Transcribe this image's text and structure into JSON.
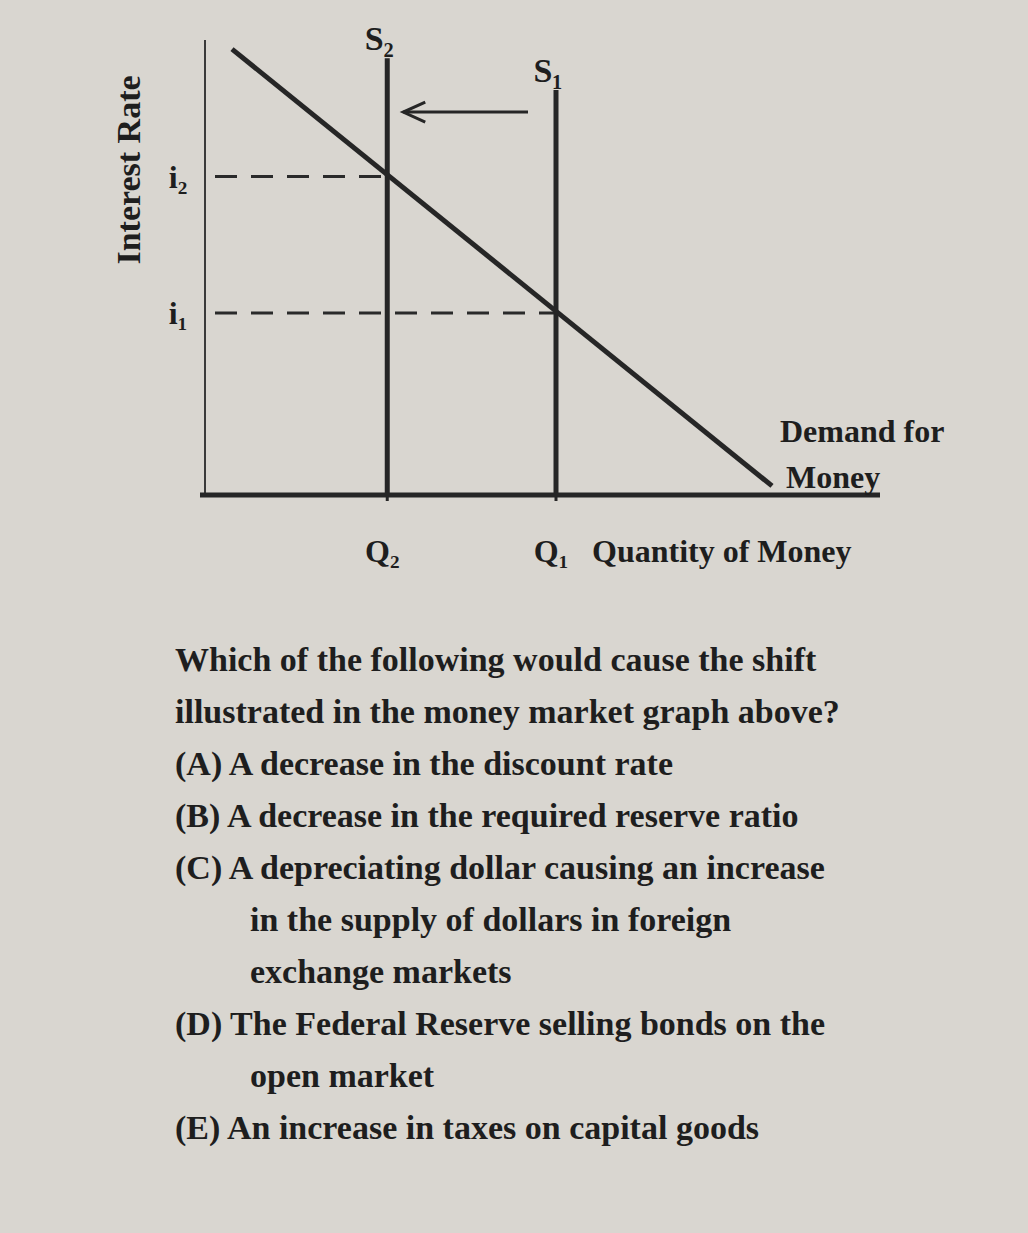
{
  "chart_data": {
    "type": "line",
    "x_label": "Quantity of Money",
    "y_label": "Interest Rate",
    "xlim": [
      0,
      100
    ],
    "ylim": [
      0,
      100
    ],
    "xticks": [
      {
        "value": 27,
        "label": "Q₂"
      },
      {
        "value": 52,
        "label": "Q₁"
      }
    ],
    "yticks": [
      {
        "value": 70,
        "label": "i₂"
      },
      {
        "value": 40,
        "label": "i₁"
      }
    ],
    "series": [
      {
        "name": "S₂",
        "color": "#262626",
        "x": [
          27,
          27
        ],
        "values": [
          0,
          96
        ]
      },
      {
        "name": "S₁",
        "color": "#262626",
        "x": [
          52,
          52
        ],
        "values": [
          0,
          89
        ]
      },
      {
        "name": "Demand for Money",
        "color": "#262626",
        "x": [
          4,
          84
        ],
        "values": [
          98,
          2
        ]
      }
    ]
  },
  "question": {
    "lines": [
      "Which of the following would cause the shift",
      "illustrated in the money market graph above?"
    ]
  },
  "options": [
    {
      "letter": "(A)",
      "lines": [
        "A decrease in the discount rate"
      ]
    },
    {
      "letter": "(B)",
      "lines": [
        "A decrease in the required reserve ratio"
      ]
    },
    {
      "letter": "(C)",
      "lines": [
        "A depreciating dollar causing an increase",
        "in the supply of dollars in foreign",
        "exchange markets"
      ]
    },
    {
      "letter": "(D)",
      "lines": [
        "The Federal Reserve selling bonds on the",
        "open market"
      ]
    },
    {
      "letter": "(E)",
      "lines": [
        "An increase in taxes on capital goods"
      ]
    }
  ]
}
